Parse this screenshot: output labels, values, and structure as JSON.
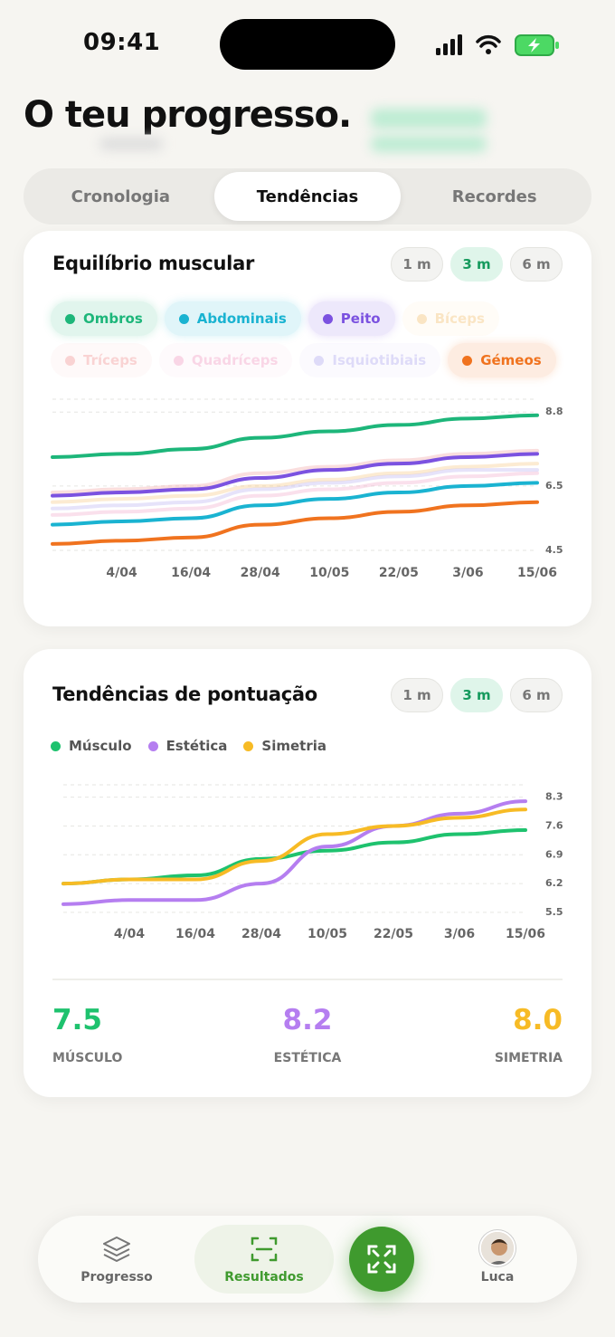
{
  "status": {
    "time": "09:41"
  },
  "header": {
    "title": "O teu progresso."
  },
  "tabs": {
    "items": [
      "Cronologia",
      "Tendências",
      "Recordes"
    ],
    "active": 1
  },
  "chart_data": [
    {
      "type": "line",
      "title": "Equilíbrio muscular",
      "ranges": [
        "1 m",
        "3 m",
        "6 m"
      ],
      "active_range": 1,
      "categories": [
        null,
        "4/04",
        "16/04",
        "28/04",
        "10/05",
        "22/05",
        "3/06",
        "15/06"
      ],
      "ylim": [
        4.5,
        9.2
      ],
      "yticks": [
        4.5,
        6.5,
        8.8
      ],
      "grid": true,
      "series": [
        {
          "name": "Ombros",
          "color": "#1db67a",
          "active": true,
          "values": [
            7.4,
            7.5,
            7.65,
            8.0,
            8.2,
            8.4,
            8.6,
            8.7
          ]
        },
        {
          "name": "Abdominais",
          "color": "#1ab3d1",
          "active": true,
          "values": [
            5.3,
            5.4,
            5.5,
            5.9,
            6.1,
            6.3,
            6.5,
            6.6
          ]
        },
        {
          "name": "Peito",
          "color": "#7b52e0",
          "active": true,
          "values": [
            6.2,
            6.3,
            6.4,
            6.75,
            7.0,
            7.2,
            7.4,
            7.5
          ]
        },
        {
          "name": "Bíceps",
          "color": "#f5c77e",
          "active": false,
          "values": [
            6.0,
            6.1,
            6.2,
            6.5,
            6.7,
            6.9,
            7.1,
            7.2
          ]
        },
        {
          "name": "Tríceps",
          "color": "#f2a0a0",
          "active": false,
          "values": [
            6.3,
            6.4,
            6.5,
            6.9,
            7.1,
            7.3,
            7.5,
            7.6
          ]
        },
        {
          "name": "Quadríceps",
          "color": "#f2a5c8",
          "active": false,
          "values": [
            5.6,
            5.7,
            5.8,
            6.2,
            6.4,
            6.6,
            6.8,
            6.9
          ]
        },
        {
          "name": "Isquiotibiais",
          "color": "#b8b0f0",
          "active": false,
          "values": [
            5.8,
            5.9,
            6.0,
            6.4,
            6.6,
            6.8,
            7.0,
            7.0
          ]
        },
        {
          "name": "Gémeos",
          "color": "#f0731f",
          "active": true,
          "values": [
            4.7,
            4.8,
            4.9,
            5.3,
            5.5,
            5.7,
            5.9,
            6.0
          ]
        }
      ]
    },
    {
      "type": "line",
      "title": "Tendências de pontuação",
      "ranges": [
        "1 m",
        "3 m",
        "6 m"
      ],
      "active_range": 1,
      "categories": [
        null,
        "4/04",
        "16/04",
        "28/04",
        "10/05",
        "22/05",
        "3/06",
        "15/06"
      ],
      "ylim": [
        5.3,
        8.6
      ],
      "yticks": [
        5.5,
        6.2,
        6.9,
        7.6,
        8.3
      ],
      "grid": true,
      "series": [
        {
          "name": "Músculo",
          "color": "#1ec26e",
          "values": [
            6.2,
            6.3,
            6.4,
            6.8,
            7.0,
            7.2,
            7.4,
            7.5
          ]
        },
        {
          "name": "Estética",
          "color": "#b57ef0",
          "values": [
            5.7,
            5.8,
            5.8,
            6.2,
            7.1,
            7.6,
            7.9,
            8.2
          ]
        },
        {
          "name": "Simetria",
          "color": "#f7bb25",
          "values": [
            6.2,
            6.3,
            6.3,
            6.75,
            7.4,
            7.6,
            7.8,
            8.0
          ]
        }
      ]
    }
  ],
  "summary": [
    {
      "value": "7.5",
      "label": "MÚSCULO"
    },
    {
      "value": "8.2",
      "label": "ESTÉTICA"
    },
    {
      "value": "8.0",
      "label": "SIMETRIA"
    }
  ],
  "nav": {
    "items": [
      "Progresso",
      "Resultados",
      "Luca"
    ]
  }
}
